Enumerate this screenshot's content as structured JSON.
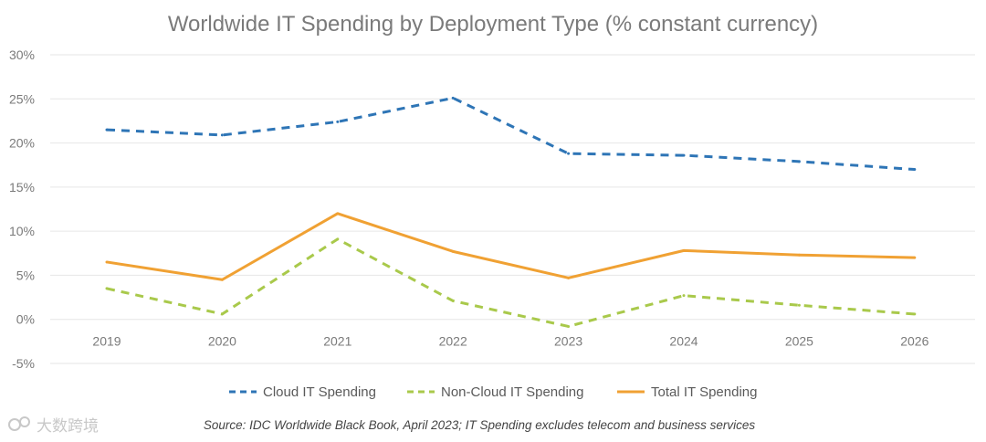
{
  "chart_data": {
    "type": "line",
    "title": "Worldwide IT Spending by Deployment Type (% constant currency)",
    "categories": [
      "2019",
      "2020",
      "2021",
      "2022",
      "2023",
      "2024",
      "2025",
      "2026"
    ],
    "yticks": [
      "30%",
      "25%",
      "20%",
      "15%",
      "10%",
      "5%",
      "0%",
      "-5%"
    ],
    "ylim": [
      -5,
      30
    ],
    "series": [
      {
        "name": "Cloud IT Spending",
        "color": "#2e75b6",
        "dash": true,
        "values": [
          21.5,
          20.9,
          22.4,
          25.1,
          18.8,
          18.6,
          17.9,
          17.0
        ]
      },
      {
        "name": "Non-Cloud IT Spending",
        "color": "#a9c94b",
        "dash": true,
        "values": [
          3.5,
          0.6,
          9.1,
          2.1,
          -0.8,
          2.7,
          1.6,
          0.6
        ]
      },
      {
        "name": "Total IT Spending",
        "color": "#f0a133",
        "dash": false,
        "values": [
          6.5,
          4.5,
          12.0,
          7.7,
          4.7,
          7.8,
          7.3,
          7.0
        ]
      }
    ]
  },
  "source": "Source: IDC Worldwide Black Book, April 2023; IT Spending excludes telecom and business services",
  "watermark": "大数跨境"
}
